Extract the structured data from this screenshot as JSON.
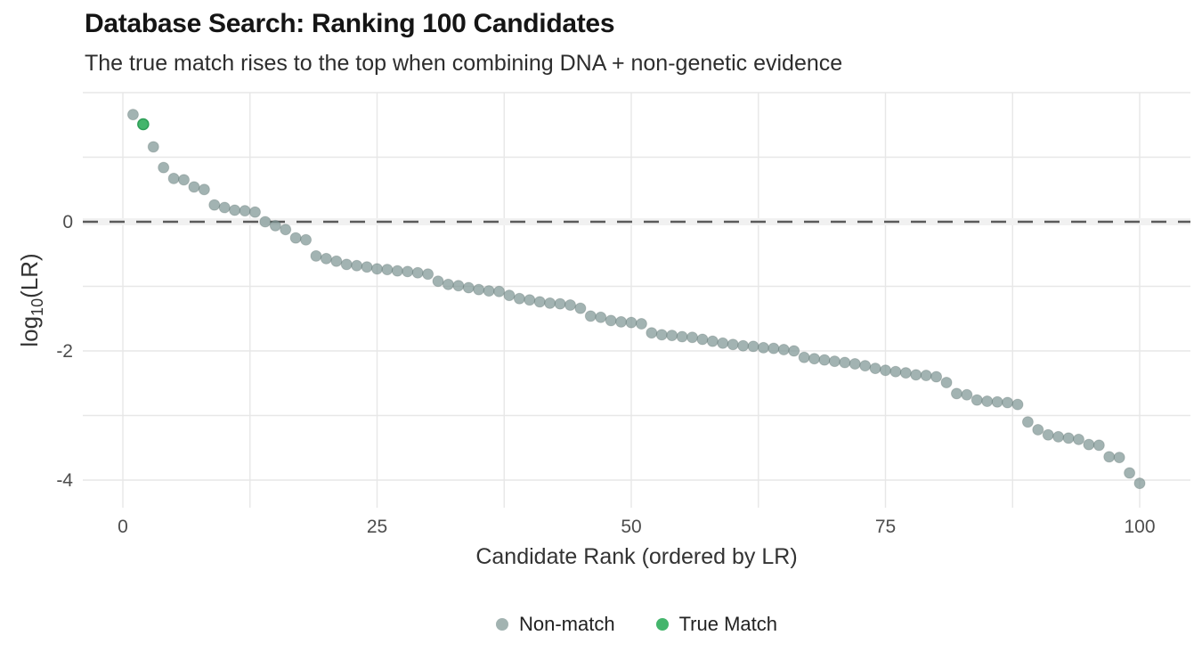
{
  "header": {
    "title": "Database Search: Ranking 100 Candidates",
    "subtitle": "The true match rises to the top when combining DNA + non-genetic evidence"
  },
  "chart_data": {
    "type": "scatter",
    "title": "Database Search: Ranking 100 Candidates",
    "subtitle": "The true match rises to the top when combining DNA + non-genetic evidence",
    "xlabel": "Candidate Rank (ordered by LR)",
    "ylabel": "log10(LR)",
    "ylabel_parts": {
      "base": "log",
      "sub": "10",
      "rest": "(LR)"
    },
    "x_ticks": [
      0,
      25,
      50,
      75,
      100
    ],
    "y_ticks": [
      0,
      -2,
      -4
    ],
    "xlim": [
      -4,
      105
    ],
    "ylim": [
      -4.43,
      2.0
    ],
    "x_grid_step": 12.5,
    "y_grid_step": 1,
    "grid": true,
    "legend_position": "bottom-center",
    "threshold_line": {
      "y": 0,
      "style": "dashed",
      "color": "#5a5a5a"
    },
    "true_match_rank": 2,
    "colors": {
      "non_match_fill": "#7e9694",
      "non_match_legend": "#a2b3b1",
      "true_match_fill": "#44b56c",
      "true_match_stroke": "#2f9e58",
      "gridline": "#e7e7e7",
      "tick_label": "#4d4d4d",
      "axis_title": "#333333"
    },
    "ranks": [
      1,
      2,
      3,
      4,
      5,
      6,
      7,
      8,
      9,
      10,
      11,
      12,
      13,
      14,
      15,
      16,
      17,
      18,
      19,
      20,
      21,
      22,
      23,
      24,
      25,
      26,
      27,
      28,
      29,
      30,
      31,
      32,
      33,
      34,
      35,
      36,
      37,
      38,
      39,
      40,
      41,
      42,
      43,
      44,
      45,
      46,
      47,
      48,
      49,
      50,
      51,
      52,
      53,
      54,
      55,
      56,
      57,
      58,
      59,
      60,
      61,
      62,
      63,
      64,
      65,
      66,
      67,
      68,
      69,
      70,
      71,
      72,
      73,
      74,
      75,
      76,
      77,
      78,
      79,
      80,
      81,
      82,
      83,
      84,
      85,
      86,
      87,
      88,
      89,
      90,
      91,
      92,
      93,
      94,
      95,
      96,
      97,
      98,
      99,
      100
    ],
    "values": [
      1.66,
      1.51,
      1.16,
      0.84,
      0.67,
      0.65,
      0.54,
      0.5,
      0.26,
      0.22,
      0.18,
      0.17,
      0.15,
      0.0,
      -0.06,
      -0.12,
      -0.25,
      -0.28,
      -0.53,
      -0.57,
      -0.61,
      -0.66,
      -0.68,
      -0.7,
      -0.73,
      -0.74,
      -0.76,
      -0.77,
      -0.79,
      -0.81,
      -0.92,
      -0.97,
      -0.99,
      -1.02,
      -1.05,
      -1.07,
      -1.08,
      -1.14,
      -1.19,
      -1.21,
      -1.24,
      -1.26,
      -1.27,
      -1.29,
      -1.34,
      -1.46,
      -1.48,
      -1.53,
      -1.55,
      -1.56,
      -1.58,
      -1.72,
      -1.75,
      -1.76,
      -1.78,
      -1.79,
      -1.82,
      -1.85,
      -1.88,
      -1.9,
      -1.92,
      -1.93,
      -1.95,
      -1.96,
      -1.98,
      -2.0,
      -2.1,
      -2.12,
      -2.14,
      -2.16,
      -2.18,
      -2.2,
      -2.23,
      -2.27,
      -2.3,
      -2.32,
      -2.34,
      -2.37,
      -2.38,
      -2.4,
      -2.49,
      -2.66,
      -2.68,
      -2.76,
      -2.78,
      -2.79,
      -2.8,
      -2.83,
      -3.1,
      -3.22,
      -3.3,
      -3.33,
      -3.35,
      -3.37,
      -3.45,
      -3.46,
      -3.64,
      -3.65,
      -3.89,
      -4.05
    ]
  },
  "legend": {
    "items": [
      {
        "label": "Non-match",
        "color": "#a2b3b1"
      },
      {
        "label": "True Match",
        "color": "#44b56c"
      }
    ]
  }
}
